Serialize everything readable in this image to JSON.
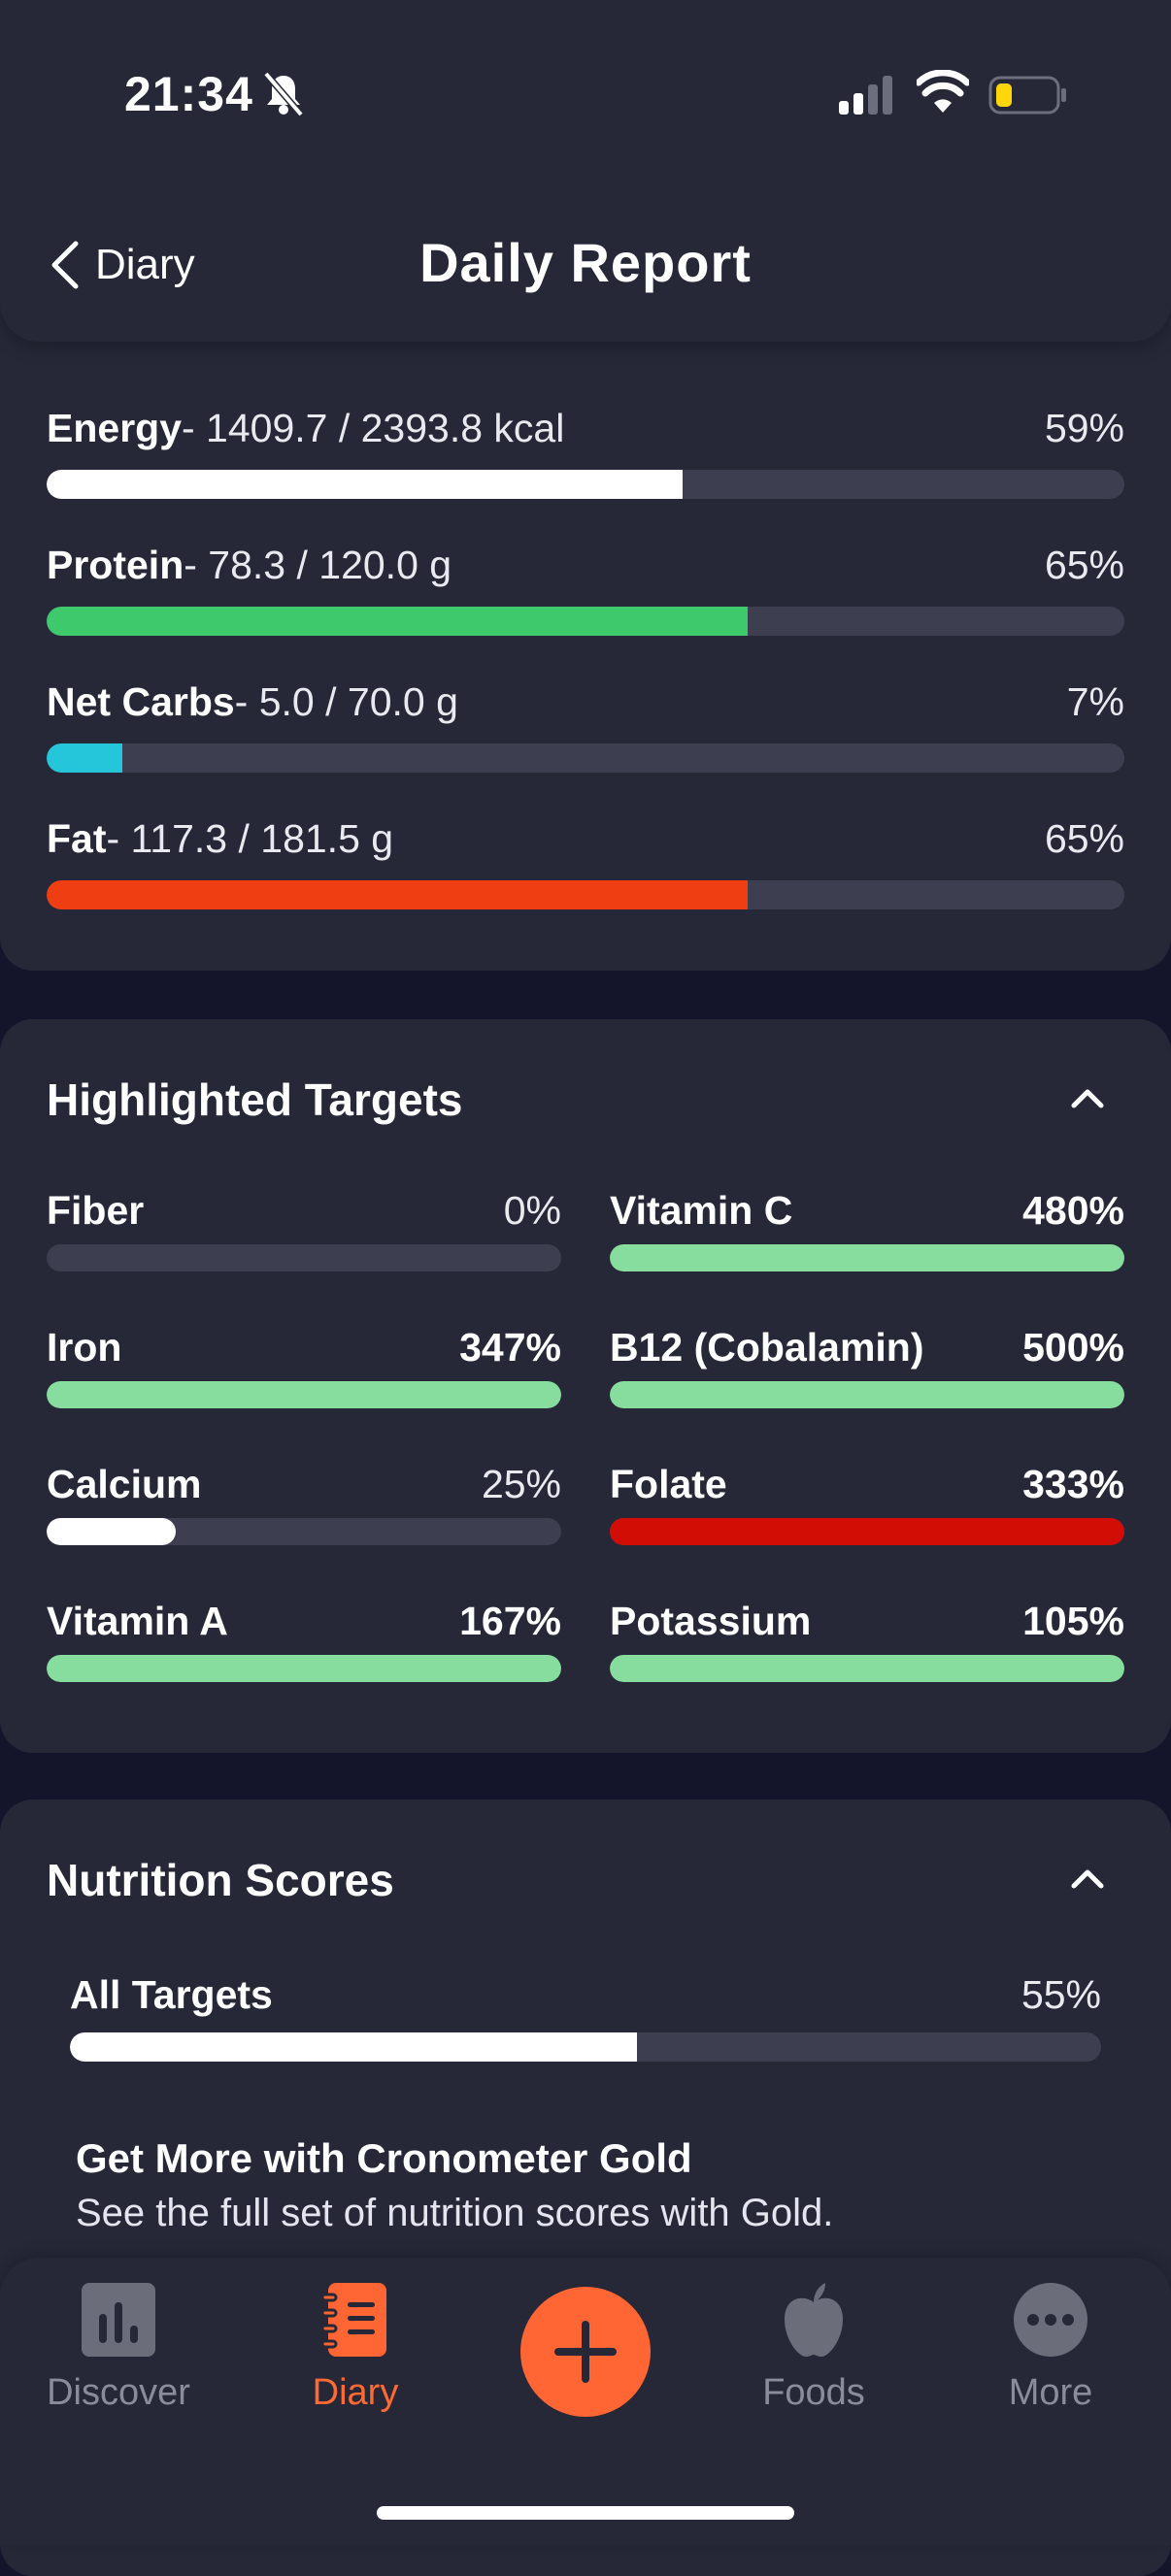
{
  "status_bar": {
    "time": "21:34"
  },
  "header": {
    "back_label": "Diary",
    "title": "Daily Report"
  },
  "macros": [
    {
      "name": "Energy",
      "value": "- 1409.7 / 2393.8 kcal",
      "percent_label": "59%",
      "fraction": 0.59,
      "color": "#ffffff"
    },
    {
      "name": "Protein",
      "value": "- 78.3 / 120.0 g",
      "percent_label": "65%",
      "fraction": 0.65,
      "color": "#3ec96d"
    },
    {
      "name": "Net Carbs",
      "value": "- 5.0 / 70.0 g",
      "percent_label": "7%",
      "fraction": 0.07,
      "color": "#26c6da"
    },
    {
      "name": "Fat",
      "value": "- 117.3 / 181.5 g",
      "percent_label": "65%",
      "fraction": 0.65,
      "color": "#ee3e12"
    }
  ],
  "highlighted": {
    "title": "Highlighted Targets",
    "items": [
      {
        "name": "Fiber",
        "percent_label": "0%",
        "fraction": 0.0,
        "color": "#3d3f50",
        "bold": false
      },
      {
        "name": "Vitamin C",
        "percent_label": "480%",
        "fraction": 1.0,
        "color": "#86dd9e",
        "bold": true
      },
      {
        "name": "Iron",
        "percent_label": "347%",
        "fraction": 1.0,
        "color": "#86dd9e",
        "bold": true
      },
      {
        "name": "B12 (Cobalamin)",
        "percent_label": "500%",
        "fraction": 1.0,
        "color": "#86dd9e",
        "bold": true
      },
      {
        "name": "Calcium",
        "percent_label": "25%",
        "fraction": 0.25,
        "color": "#ffffff",
        "bold": false
      },
      {
        "name": "Folate",
        "percent_label": "333%",
        "fraction": 1.0,
        "color": "#d10d06",
        "bold": true
      },
      {
        "name": "Vitamin A",
        "percent_label": "167%",
        "fraction": 1.0,
        "color": "#86dd9e",
        "bold": true
      },
      {
        "name": "Potassium",
        "percent_label": "105%",
        "fraction": 1.0,
        "color": "#86dd9e",
        "bold": true
      }
    ]
  },
  "scores": {
    "title": "Nutrition Scores",
    "all_targets_label": "All Targets",
    "all_targets_percent": "55%",
    "all_targets_fraction": 0.55,
    "promo_title": "Get More with Cronometer Gold",
    "promo_subtitle": "See the full set of nutrition scores with Gold."
  },
  "tabs": [
    {
      "label": "Discover",
      "icon": "bar-chart-icon",
      "active": false
    },
    {
      "label": "Diary",
      "icon": "notebook-icon",
      "active": true
    },
    {
      "label": "Foods",
      "icon": "apple-icon",
      "active": false
    },
    {
      "label": "More",
      "icon": "more-dots-icon",
      "active": false
    }
  ],
  "colors": {
    "accent": "#ff6633",
    "card": "#262838",
    "background": "#14152a"
  }
}
